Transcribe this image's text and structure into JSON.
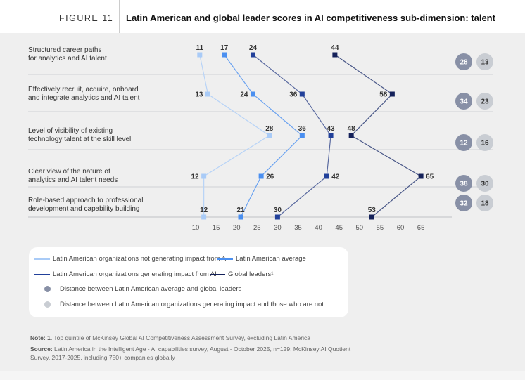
{
  "header": {
    "figure_label": "FIGURE 11",
    "title": "Latin American and global leader scores in AI competitiveness sub-dimension: talent"
  },
  "chart_data": {
    "type": "line",
    "orientation": "horizontal",
    "categories": [
      [
        "Structured career paths",
        "for analytics and AI talent"
      ],
      [
        "Effectively recruit, acquire, onboard",
        "and integrate analytics and AI talent"
      ],
      [
        "Level of visibility of existing",
        "technology talent at the skill level"
      ],
      [
        "Clear view of the nature of",
        "analytics and AI talent needs"
      ],
      [
        "Role-based approach to professional",
        "development and capability building"
      ]
    ],
    "xlim": [
      10,
      65
    ],
    "xticks": [
      "10",
      "15",
      "20",
      "25",
      "30",
      "35",
      "40",
      "45",
      "50",
      "55",
      "60",
      "65"
    ],
    "series": [
      {
        "name": "Latin American organizations not generating impact from AI",
        "color": "#a9cbf7",
        "values": [
          11,
          13,
          28,
          12,
          12
        ]
      },
      {
        "name": "Latin American average",
        "color": "#4a8ff0",
        "values": [
          17,
          24,
          36,
          26,
          21
        ]
      },
      {
        "name": "Latin American organizations generating impact from AI",
        "color": "#21409a",
        "values": [
          24,
          36,
          43,
          42,
          30
        ]
      },
      {
        "name": "Global leaders¹",
        "color": "#14215a",
        "values": [
          44,
          58,
          48,
          65,
          53
        ]
      }
    ],
    "distances": {
      "leaders_vs_average": {
        "name": "Distance between Latin American average and global leaders",
        "color": "#8890a6",
        "values": [
          "28",
          "34",
          "12",
          "38",
          "32"
        ]
      },
      "impact_vs_not": {
        "name": "Distance between Latin American organizations generating impact and those who are not",
        "color": "#c9cdd3",
        "values": [
          "13",
          "23",
          "16",
          "30",
          "18"
        ]
      }
    },
    "legend": "bottom-left"
  },
  "notes": {
    "note_label": "Note: 1.",
    "note_text": " Top quintile of McKinsey Global AI Competitiveness Assessment Survey, excluding Latin America",
    "source_label": "Source:",
    "source_text": " Latin America in the Intelligent Age - AI capabilities survey, August - October 2025, n=129; McKinsey AI Quotient Survey, 2017-2025, including 750+ companies globally"
  }
}
